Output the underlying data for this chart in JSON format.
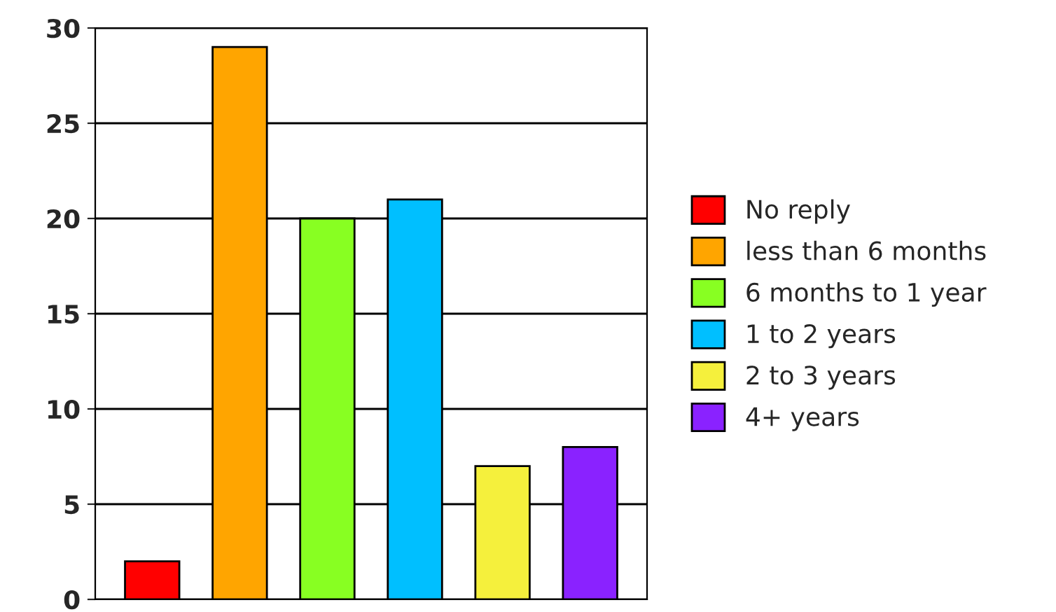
{
  "chart_data": {
    "type": "bar",
    "categories": [
      null,
      null,
      null,
      null,
      null,
      null
    ],
    "series": [
      {
        "name": "No reply",
        "color": "#ff0000",
        "values": [
          2,
          null,
          null,
          null,
          null,
          null
        ]
      },
      {
        "name": "less than 6 months",
        "color": "#ffa500",
        "values": [
          null,
          29,
          null,
          null,
          null,
          null
        ]
      },
      {
        "name": "6 months to 1 year",
        "color": "#88ff22",
        "values": [
          null,
          null,
          20,
          null,
          null,
          null
        ]
      },
      {
        "name": "1 to 2 years",
        "color": "#00bfff",
        "values": [
          null,
          null,
          null,
          21,
          null,
          null
        ]
      },
      {
        "name": "2 to 3 years",
        "color": "#f5f03c",
        "values": [
          null,
          null,
          null,
          null,
          7,
          null
        ]
      },
      {
        "name": "4+ years",
        "color": "#8a22ff",
        "values": [
          null,
          null,
          null,
          null,
          null,
          8
        ]
      }
    ],
    "ylim": [
      0,
      30
    ],
    "yticks": [
      0,
      5,
      10,
      15,
      20,
      25,
      30
    ],
    "grid": "y",
    "legend": "right",
    "tick_labels": "y"
  }
}
